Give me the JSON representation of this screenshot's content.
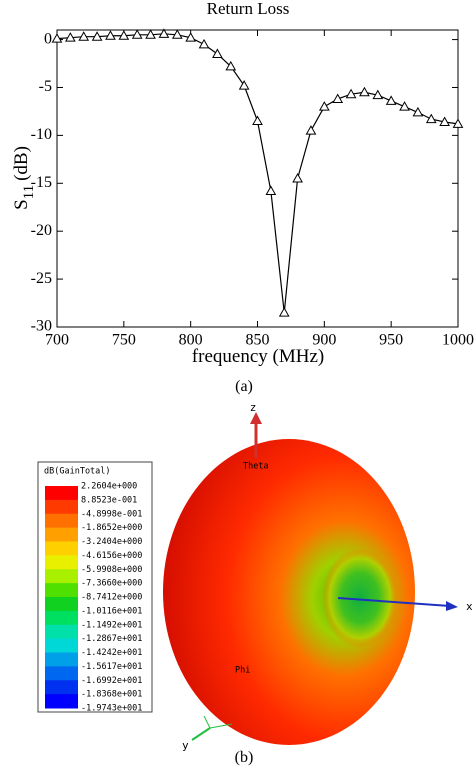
{
  "chart_data": {
    "type": "line",
    "title": "Return Loss",
    "xlabel": "frequency (MHz)",
    "ylabel": {
      "main": "S",
      "sub": "11",
      "unit": "(dB)"
    },
    "x": [
      700,
      710,
      720,
      730,
      740,
      750,
      760,
      770,
      780,
      790,
      800,
      810,
      820,
      830,
      840,
      850,
      860,
      870,
      880,
      890,
      900,
      910,
      920,
      930,
      940,
      950,
      960,
      970,
      980,
      990,
      1000
    ],
    "values": [
      0.1,
      0.2,
      0.3,
      0.3,
      0.4,
      0.4,
      0.5,
      0.5,
      0.6,
      0.5,
      0.2,
      -0.5,
      -1.5,
      -2.8,
      -4.8,
      -8.5,
      -15.8,
      -28.5,
      -14.5,
      -9.5,
      -7,
      -6.2,
      -5.7,
      -5.5,
      -5.8,
      -6.4,
      -7,
      -7.6,
      -8.3,
      -8.6,
      -8.8
    ],
    "color": "#000000",
    "marker": "triangle",
    "xlim": [
      700,
      1000
    ],
    "xticks": [
      700,
      750,
      800,
      850,
      900,
      950,
      1000
    ],
    "ylim": [
      -30,
      1
    ],
    "yticks": [
      0,
      -5,
      -10,
      -15,
      -20,
      -25,
      -30
    ],
    "grid": false,
    "caption": "(a)"
  },
  "figure_b": {
    "legend_title": "dB(GainTotal)",
    "legend_labels": [
      "2.2604e+000",
      "8.8523e-001",
      "-4.8998e-001",
      "-1.8652e+000",
      "-3.2404e+000",
      "-4.6156e+000",
      "-5.9908e+000",
      "-7.3660e+000",
      "-8.7412e+000",
      "-1.0116e+001",
      "-1.1492e+001",
      "-1.2867e+001",
      "-1.4242e+001",
      "-1.5617e+001",
      "-1.6992e+001",
      "-1.8368e+001",
      "-1.9743e+001"
    ],
    "legend_colors": [
      "#ff0000",
      "#ff3a00",
      "#ff7000",
      "#ffa000",
      "#ffd000",
      "#e8f000",
      "#a8f000",
      "#50e000",
      "#10d020",
      "#00e060",
      "#00e0a8",
      "#00d8d8",
      "#00a0e8",
      "#0068f0",
      "#0030f0",
      "#0000ff"
    ],
    "axis_labels": {
      "z": "z",
      "x": "x",
      "y": "y",
      "theta": "Theta",
      "phi": "Phi"
    },
    "caption": "(b)"
  }
}
